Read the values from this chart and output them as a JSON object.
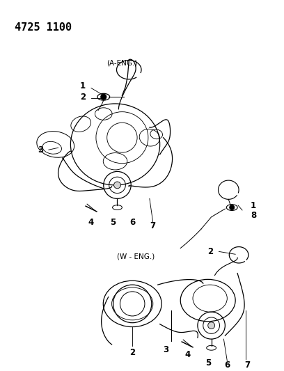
{
  "title": "4725 1100",
  "title_fontsize": 11,
  "title_fontweight": "bold",
  "background_color": "#ffffff",
  "text_color": "#000000",
  "diagram_color": "#000000",
  "a_eng_label": "(A-ENG.)",
  "w_eng_label": "(W - ENG.)",
  "figsize": [
    4.08,
    5.33
  ],
  "dpi": 100,
  "lw": 0.9,
  "label_fontsize": 8.5
}
